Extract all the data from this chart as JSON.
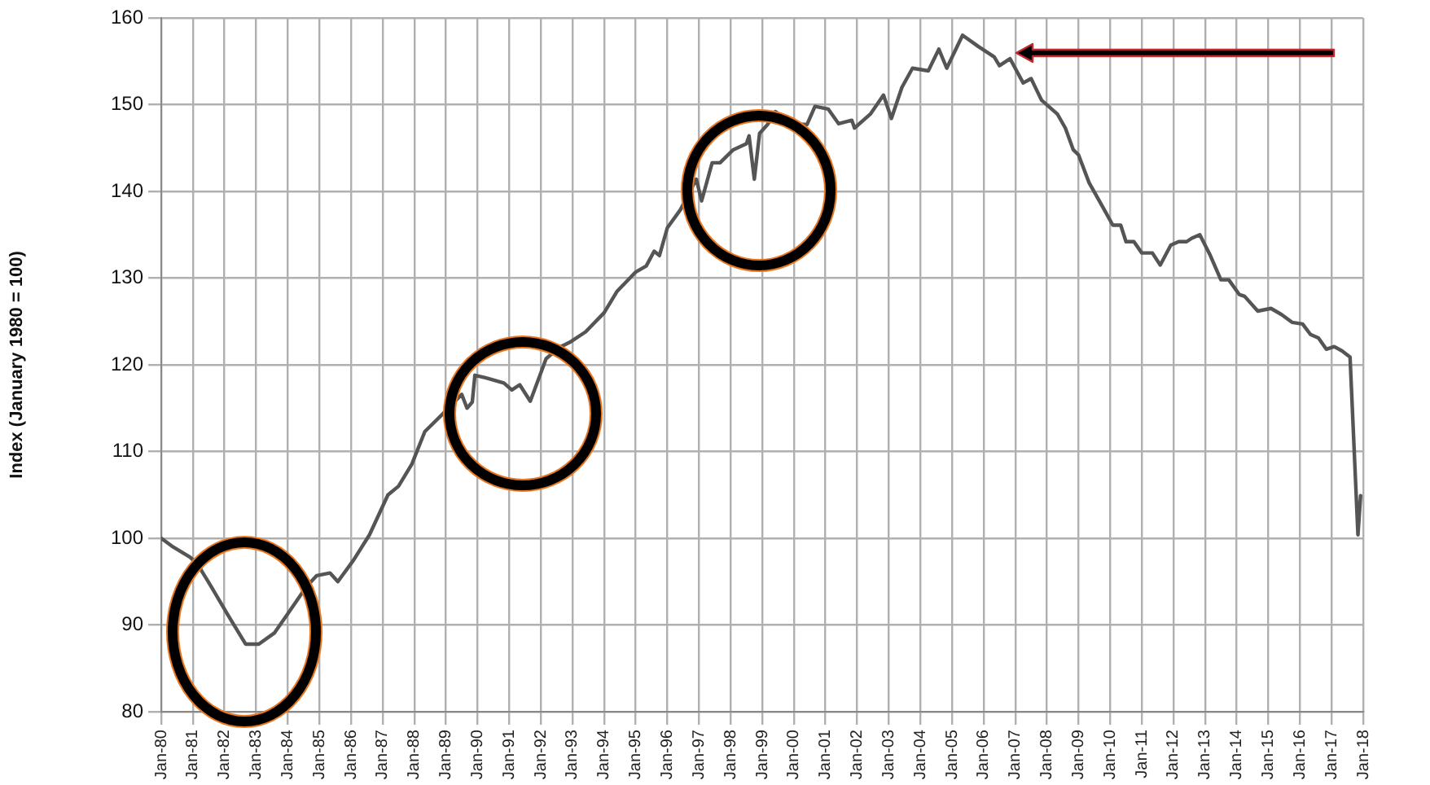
{
  "chart_data": {
    "type": "line",
    "ylabel": "Index (January 1980 = 100)",
    "xlim": [
      "1980-01",
      "2018-01"
    ],
    "ylim": [
      80,
      160
    ],
    "xticks": [
      {
        "value": "1980-01",
        "label": "Jan-80"
      },
      {
        "value": "1981-01",
        "label": "Jan-81"
      },
      {
        "value": "1982-01",
        "label": "Jan-82"
      },
      {
        "value": "1983-01",
        "label": "Jan-83"
      },
      {
        "value": "1984-01",
        "label": "Jan-84"
      },
      {
        "value": "1985-01",
        "label": "Jan-85"
      },
      {
        "value": "1986-01",
        "label": "Jan-86"
      },
      {
        "value": "1987-01",
        "label": "Jan-87"
      },
      {
        "value": "1988-01",
        "label": "Jan-88"
      },
      {
        "value": "1989-01",
        "label": "Jan-89"
      },
      {
        "value": "1990-01",
        "label": "Jan-90"
      },
      {
        "value": "1991-01",
        "label": "Jan-91"
      },
      {
        "value": "1992-01",
        "label": "Jan-92"
      },
      {
        "value": "1993-01",
        "label": "Jan-93"
      },
      {
        "value": "1994-01",
        "label": "Jan-94"
      },
      {
        "value": "1995-01",
        "label": "Jan-95"
      },
      {
        "value": "1996-01",
        "label": "Jan-96"
      },
      {
        "value": "1997-01",
        "label": "Jan-97"
      },
      {
        "value": "1998-01",
        "label": "Jan-98"
      },
      {
        "value": "1999-01",
        "label": "Jan-99"
      },
      {
        "value": "2000-01",
        "label": "Jan-00"
      },
      {
        "value": "2001-01",
        "label": "Jan-01"
      },
      {
        "value": "2002-01",
        "label": "Jan-02"
      },
      {
        "value": "2003-01",
        "label": "Jan-03"
      },
      {
        "value": "2004-01",
        "label": "Jan-04"
      },
      {
        "value": "2005-01",
        "label": "Jan-05"
      },
      {
        "value": "2006-01",
        "label": "Jan-06"
      },
      {
        "value": "2007-01",
        "label": "Jan-07"
      },
      {
        "value": "2008-01",
        "label": "Jan-08"
      },
      {
        "value": "2009-01",
        "label": "Jan-09"
      },
      {
        "value": "2010-01",
        "label": "Jan-10"
      },
      {
        "value": "2011-01",
        "label": "Jan-11"
      },
      {
        "value": "2012-01",
        "label": "Jan-12"
      },
      {
        "value": "2013-01",
        "label": "Jan-13"
      },
      {
        "value": "2014-01",
        "label": "Jan-14"
      },
      {
        "value": "2015-01",
        "label": "Jan-15"
      },
      {
        "value": "2016-01",
        "label": "Jan-16"
      },
      {
        "value": "2017-01",
        "label": "Jan-17"
      },
      {
        "value": "2018-01",
        "label": "Jan-18"
      }
    ],
    "yticks": [
      80,
      90,
      100,
      110,
      120,
      130,
      140,
      150,
      160
    ],
    "grid": true,
    "legend": false,
    "marker": "none",
    "line_style": "solid",
    "series": [
      {
        "color": "#555555",
        "x": [
          "1980-01",
          "1980-05",
          "1980-12",
          "1981-03",
          "1981-08",
          "1982-02",
          "1982-09",
          "1983-02",
          "1983-08",
          "1984-01",
          "1984-08",
          "1984-12",
          "1985-05",
          "1985-08",
          "1986-02",
          "1986-08",
          "1987-03",
          "1987-07",
          "1987-12",
          "1988-05",
          "1988-12",
          "1989-07",
          "1989-09",
          "1989-11",
          "1989-12",
          "1990-04",
          "1990-11",
          "1991-02",
          "1991-05",
          "1991-09",
          "1992-03",
          "1992-08",
          "1992-12",
          "1993-06",
          "1994-01",
          "1994-06",
          "1995-01",
          "1995-05",
          "1995-08",
          "1995-10",
          "1996-01",
          "1996-06",
          "1996-12",
          "1997-02",
          "1997-06",
          "1997-09",
          "1998-02",
          "1998-07",
          "1998-08",
          "1998-10",
          "1998-12",
          "1999-03",
          "1999-06",
          "1999-12",
          "2000-06",
          "2000-09",
          "2001-02",
          "2001-06",
          "2001-11",
          "2001-12",
          "2002-06",
          "2002-11",
          "2003-02",
          "2003-06",
          "2003-10",
          "2004-04",
          "2004-08",
          "2004-11",
          "2005-02",
          "2005-05",
          "2005-11",
          "2006-05",
          "2006-07",
          "2006-11",
          "2007-04",
          "2007-07",
          "2007-11",
          "2008-05",
          "2008-08",
          "2008-11",
          "2009-01",
          "2009-05",
          "2009-10",
          "2010-02",
          "2010-05",
          "2010-07",
          "2010-10",
          "2011-01",
          "2011-05",
          "2011-08",
          "2011-12",
          "2012-03",
          "2012-06",
          "2012-08",
          "2012-11",
          "2013-03",
          "2013-07",
          "2013-10",
          "2014-02",
          "2014-04",
          "2014-09",
          "2015-02",
          "2015-06",
          "2015-10",
          "2016-02",
          "2016-05",
          "2016-08",
          "2016-11",
          "2017-02",
          "2017-05",
          "2017-08",
          "2017-11",
          "2017-12"
        ],
        "values": [
          100,
          99.1,
          97.8,
          96.9,
          94.4,
          91.3,
          87.8,
          87.8,
          89.1,
          91.3,
          94.4,
          95.7,
          96,
          95,
          97.5,
          100.4,
          105,
          106,
          108.5,
          112.3,
          114.4,
          116.6,
          115,
          115.7,
          118.8,
          118.5,
          117.9,
          117.1,
          117.7,
          115.8,
          120.7,
          122,
          122.6,
          123.8,
          126,
          128.5,
          130.7,
          131.4,
          133.1,
          132.6,
          135.8,
          137.9,
          141.4,
          138.9,
          143.3,
          143.3,
          144.8,
          145.5,
          146.4,
          141.4,
          146.7,
          147.7,
          149.2,
          147.8,
          147.7,
          149.8,
          149.5,
          147.8,
          148.2,
          147.3,
          148.9,
          151.1,
          148.4,
          152,
          154.2,
          153.9,
          156.4,
          154.2,
          156.1,
          158,
          156.7,
          155.5,
          154.5,
          155.3,
          152.5,
          153,
          150.5,
          148.9,
          147.3,
          144.8,
          144.2,
          141,
          138.3,
          136.1,
          136.1,
          134.2,
          134.2,
          132.9,
          132.9,
          131.5,
          133.8,
          134.2,
          134.2,
          134.6,
          135,
          132.6,
          129.8,
          129.8,
          128.1,
          127.9,
          126.2,
          126.5,
          125.8,
          124.9,
          124.7,
          123.5,
          123.1,
          121.8,
          122.1,
          121.6,
          120.9,
          100.4,
          104.9
        ]
      }
    ]
  }
}
